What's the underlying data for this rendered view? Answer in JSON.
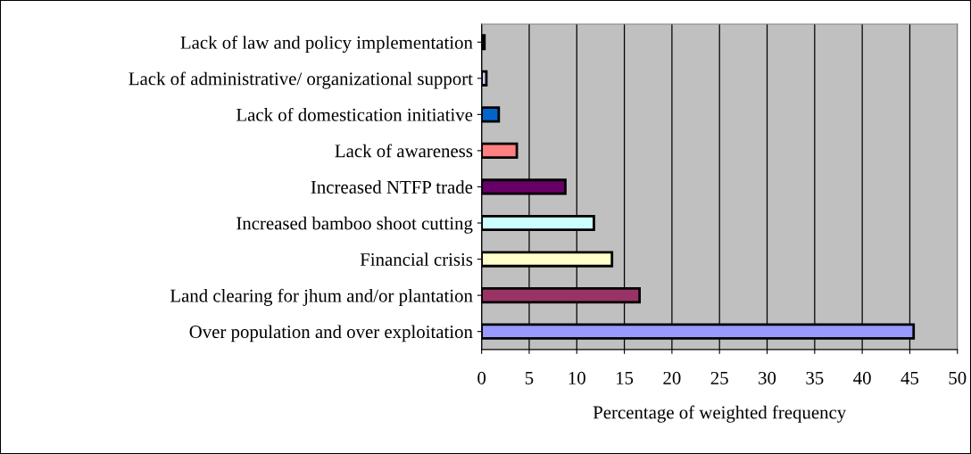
{
  "chart_data": {
    "type": "bar",
    "orientation": "horizontal",
    "xlabel": "Percentage of weighted frequency",
    "categories": [
      "Lack of law and policy implementation",
      "Lack of administrative/ organizational support",
      "Lack of domestication initiative",
      "Lack of awareness",
      "Increased NTFP trade",
      "Increased bamboo shoot cutting",
      "Financial crisis",
      "Land clearing for jhum and/or plantation",
      "Over population and over exploitation"
    ],
    "values": [
      0.3,
      0.5,
      1.8,
      3.7,
      8.8,
      11.8,
      13.7,
      16.6,
      45.4
    ],
    "colors": [
      "#000000",
      "#ccccff",
      "#0066cc",
      "#ff8080",
      "#660066",
      "#ccffff",
      "#ffffcc",
      "#993366",
      "#9999ff"
    ],
    "xlim": [
      0,
      50
    ],
    "xticks": [
      0,
      5,
      10,
      15,
      20,
      25,
      30,
      35,
      40,
      45,
      50
    ],
    "grid": "x",
    "legend": false
  }
}
